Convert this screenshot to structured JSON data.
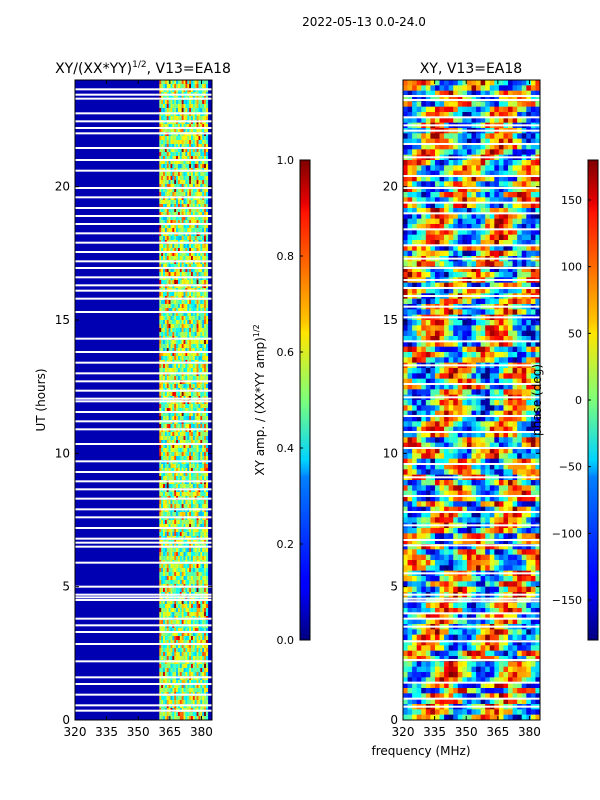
{
  "figure": {
    "suptitle": "2022-05-13 0.0-24.0",
    "xlabel_shared": "frequency (MHz)"
  },
  "chart_data": [
    {
      "type": "heatmap",
      "title_main": "XY/(XX*YY)",
      "title_sup": "1/2",
      "title_rest": ", V13=EA18",
      "ylabel": "UT (hours)",
      "xlim": [
        320,
        385
      ],
      "ylim": [
        0,
        24
      ],
      "xticks": [
        320,
        335,
        350,
        365,
        380
      ],
      "yticks": [
        0,
        5,
        10,
        15,
        20
      ],
      "colorbar": {
        "label": "XY amp. / (XX*YY amp)^1/2",
        "label_main": "XY amp. / (XX*YY amp)",
        "label_sup": "1/2",
        "min": 0.0,
        "max": 1.0,
        "ticks": [
          "0.0",
          "0.2",
          "0.4",
          "0.6",
          "0.8",
          "1.0"
        ],
        "cmap": "jet"
      },
      "description_values": {
        "background_level": 0.05,
        "active_band_MHz": [
          360,
          383
        ],
        "active_band_level_range": [
          0.3,
          0.9
        ]
      },
      "gap_hours": [
        0.35,
        0.55,
        0.95,
        1.35,
        1.6,
        2.2,
        2.85,
        3.3,
        3.55,
        3.8,
        4.5,
        4.6,
        4.7,
        5.0,
        5.9,
        6.5,
        6.65,
        6.8,
        7.2,
        7.6,
        7.9,
        8.3,
        8.65,
        8.95,
        9.3,
        9.7,
        10.35,
        10.9,
        11.2,
        11.55,
        11.95,
        12.05,
        12.35,
        12.7,
        13.0,
        13.4,
        13.8,
        14.3,
        15.3,
        15.8,
        16.1,
        16.3,
        16.6,
        16.95,
        17.2,
        17.55,
        17.9,
        18.25,
        18.6,
        18.9,
        19.2,
        19.6,
        19.95,
        20.6,
        21.0,
        21.45,
        22.0,
        22.2,
        22.45,
        22.75,
        23.3,
        23.45,
        23.65
      ]
    },
    {
      "type": "heatmap",
      "title": "XY, V13=EA18",
      "xlim": [
        320,
        385
      ],
      "ylim": [
        0,
        24
      ],
      "xticks": [
        320,
        335,
        350,
        365,
        380
      ],
      "yticks": [
        0,
        5,
        10,
        15,
        20
      ],
      "colorbar": {
        "label": "phase (deg)",
        "min": -180,
        "max": 180,
        "ticks": [
          "−150",
          "−100",
          "−50",
          "0",
          "50",
          "100",
          "150"
        ],
        "tick_values": [
          -150,
          -100,
          -50,
          0,
          50,
          100,
          150
        ],
        "cmap": "jet"
      },
      "description_values": {
        "phase_range_deg": [
          -180,
          180
        ]
      },
      "gap_hours": [
        0.5,
        0.8,
        1.4,
        2.25,
        2.95,
        3.5,
        3.8,
        4.0,
        4.45,
        4.55,
        4.7,
        5.5,
        6.55,
        6.75,
        7.3,
        7.8,
        8.4,
        9.1,
        9.6,
        10.2,
        10.8,
        11.4,
        12.1,
        12.6,
        13.3,
        14.2,
        15.1,
        15.5,
        15.9,
        16.2,
        16.5,
        16.95,
        17.3,
        17.8,
        18.4,
        19.0,
        19.4,
        19.95,
        20.4,
        21.1,
        21.6,
        22.1,
        22.3,
        22.6,
        23.25,
        23.4
      ]
    }
  ]
}
